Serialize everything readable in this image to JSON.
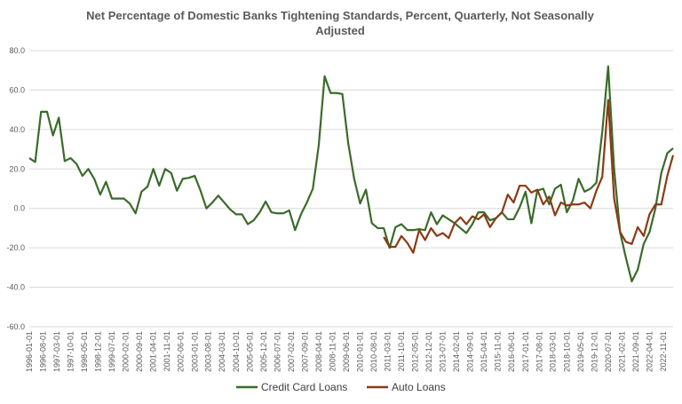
{
  "chart_data": {
    "type": "line",
    "title_line1": "Net Percentage of Domestic Banks Tightening Standards, Percent, Quarterly, Not Seasonally",
    "title_line2": "Adjusted",
    "ylim": [
      -60,
      80
    ],
    "yticks": [
      "80.0",
      "60.0",
      "40.0",
      "20.0",
      "0.0",
      "-20.0",
      "-40.0",
      "-60.0"
    ],
    "ytick_values": [
      80,
      60,
      40,
      20,
      0,
      -20,
      -40,
      -60
    ],
    "x_start": "1996-01-01",
    "x_end": "2023-04-01",
    "xtick_labels": [
      "1996-01-01",
      "1996-08-01",
      "1997-03-01",
      "1997-10-01",
      "1998-05-01",
      "1998-12-01",
      "1999-07-01",
      "2000-02-01",
      "2000-09-01",
      "2001-04-01",
      "2001-11-01",
      "2002-06-01",
      "2003-01-01",
      "2003-08-01",
      "2004-03-01",
      "2004-10-01",
      "2005-05-01",
      "2005-12-01",
      "2006-07-01",
      "2007-02-01",
      "2007-09-01",
      "2008-04-01",
      "2008-11-01",
      "2009-06-01",
      "2010-01-01",
      "2010-08-01",
      "2011-03-01",
      "2011-10-01",
      "2012-05-01",
      "2012-12-01",
      "2013-07-01",
      "2014-02-01",
      "2014-09-01",
      "2015-04-01",
      "2015-11-01",
      "2016-06-01",
      "2017-01-01",
      "2017-08-01",
      "2018-03-01",
      "2018-10-01",
      "2019-05-01",
      "2019-12-01",
      "2020-07-01",
      "2021-02-01",
      "2021-09-01",
      "2022-04-01",
      "2022-11-01"
    ],
    "grid": "horizontal",
    "legend_position": "bottom",
    "series": [
      {
        "name": "Credit Card Loans",
        "color": "#3a6b2a",
        "x": [
          "1996-01-01",
          "1996-04-01",
          "1996-07-01",
          "1996-10-01",
          "1997-01-01",
          "1997-04-01",
          "1997-07-01",
          "1997-10-01",
          "1998-01-01",
          "1998-04-01",
          "1998-07-01",
          "1998-10-01",
          "1999-01-01",
          "1999-04-01",
          "1999-07-01",
          "1999-10-01",
          "2000-01-01",
          "2000-04-01",
          "2000-07-01",
          "2000-10-01",
          "2001-01-01",
          "2001-04-01",
          "2001-07-01",
          "2001-10-01",
          "2002-01-01",
          "2002-04-01",
          "2002-07-01",
          "2002-10-01",
          "2003-01-01",
          "2003-04-01",
          "2003-07-01",
          "2003-10-01",
          "2004-01-01",
          "2004-04-01",
          "2004-07-01",
          "2004-10-01",
          "2005-01-01",
          "2005-04-01",
          "2005-07-01",
          "2005-10-01",
          "2006-01-01",
          "2006-04-01",
          "2006-07-01",
          "2006-10-01",
          "2007-01-01",
          "2007-04-01",
          "2007-07-01",
          "2007-10-01",
          "2008-01-01",
          "2008-04-01",
          "2008-07-01",
          "2008-10-01",
          "2009-01-01",
          "2009-04-01",
          "2009-07-01",
          "2009-10-01",
          "2010-01-01",
          "2010-04-01",
          "2010-07-01",
          "2010-10-01",
          "2011-01-01",
          "2011-04-01",
          "2011-07-01",
          "2011-10-01",
          "2012-01-01",
          "2012-04-01",
          "2012-07-01",
          "2012-10-01",
          "2013-01-01",
          "2013-04-01",
          "2013-07-01",
          "2013-10-01",
          "2014-01-01",
          "2014-04-01",
          "2014-07-01",
          "2014-10-01",
          "2015-01-01",
          "2015-04-01",
          "2015-07-01",
          "2015-10-01",
          "2016-01-01",
          "2016-04-01",
          "2016-07-01",
          "2016-10-01",
          "2017-01-01",
          "2017-04-01",
          "2017-07-01",
          "2017-10-01",
          "2018-01-01",
          "2018-04-01",
          "2018-07-01",
          "2018-10-01",
          "2019-01-01",
          "2019-04-01",
          "2019-07-01",
          "2019-10-01",
          "2020-01-01",
          "2020-04-01",
          "2020-07-01",
          "2020-10-01",
          "2021-01-01",
          "2021-04-01",
          "2021-07-01",
          "2021-10-01",
          "2022-01-01",
          "2022-04-01",
          "2022-07-01",
          "2022-10-01",
          "2023-01-01",
          "2023-04-01"
        ],
        "values": [
          25.5,
          23.5,
          49,
          49,
          37,
          46,
          24,
          25.5,
          22.5,
          16.5,
          20,
          15,
          7,
          13.5,
          5,
          5,
          5,
          2.5,
          -2.5,
          8.5,
          11,
          20,
          11.5,
          20,
          18,
          9,
          15,
          15.5,
          16.5,
          9,
          0,
          3,
          6.5,
          3,
          -0.5,
          -3,
          -3,
          -8,
          -6,
          -2,
          3.5,
          -2,
          -2.5,
          -2.5,
          -1,
          -11,
          -3,
          3,
          10,
          32,
          67,
          58.5,
          58.5,
          58,
          33,
          15,
          2.5,
          9.5,
          -7.5,
          -10,
          -10,
          -20,
          -9.5,
          -8,
          -11,
          -11,
          -10.5,
          -11,
          -2,
          -8,
          -3.5,
          -5.5,
          -7.5,
          -10,
          -12.5,
          -8,
          -2,
          -2,
          -6,
          -5,
          -2,
          -5.5,
          -5.5,
          0.5,
          8.5,
          -7.5,
          9,
          10,
          2,
          10,
          12,
          -2,
          4,
          15,
          8.5,
          10,
          13,
          39,
          72,
          20,
          -12,
          -25,
          -37,
          -31,
          -18,
          -12,
          0,
          18,
          28,
          30.5
        ]
      },
      {
        "name": "Auto Loans",
        "color": "#8b3a14",
        "x": [
          "2011-01-01",
          "2011-04-01",
          "2011-07-01",
          "2011-10-01",
          "2012-01-01",
          "2012-04-01",
          "2012-07-01",
          "2012-10-01",
          "2013-01-01",
          "2013-04-01",
          "2013-07-01",
          "2013-10-01",
          "2014-01-01",
          "2014-04-01",
          "2014-07-01",
          "2014-10-01",
          "2015-01-01",
          "2015-04-01",
          "2015-07-01",
          "2015-10-01",
          "2016-01-01",
          "2016-04-01",
          "2016-07-01",
          "2016-10-01",
          "2017-01-01",
          "2017-04-01",
          "2017-07-01",
          "2017-10-01",
          "2018-01-01",
          "2018-04-01",
          "2018-07-01",
          "2018-10-01",
          "2019-01-01",
          "2019-04-01",
          "2019-07-01",
          "2019-10-01",
          "2020-01-01",
          "2020-04-01",
          "2020-07-01",
          "2020-10-01",
          "2021-01-01",
          "2021-04-01",
          "2021-07-01",
          "2021-10-01",
          "2022-01-01",
          "2022-04-01",
          "2022-07-01",
          "2022-10-01",
          "2023-01-01",
          "2023-04-01"
        ],
        "values": [
          -14.5,
          -19.5,
          -19.5,
          -14,
          -17.5,
          -22.5,
          -11,
          -16,
          -10,
          -14,
          -12.5,
          -15,
          -7.5,
          -4.5,
          -8,
          -4,
          -5.5,
          -3,
          -9.5,
          -5,
          -2,
          7,
          3,
          11.5,
          11.5,
          8,
          9.5,
          2,
          6,
          -3.5,
          3,
          1.5,
          2,
          2,
          3,
          0,
          9,
          16,
          55,
          5,
          -12,
          -17,
          -18,
          -9.5,
          -14,
          -3,
          2,
          2,
          16.5,
          27
        ]
      }
    ]
  }
}
